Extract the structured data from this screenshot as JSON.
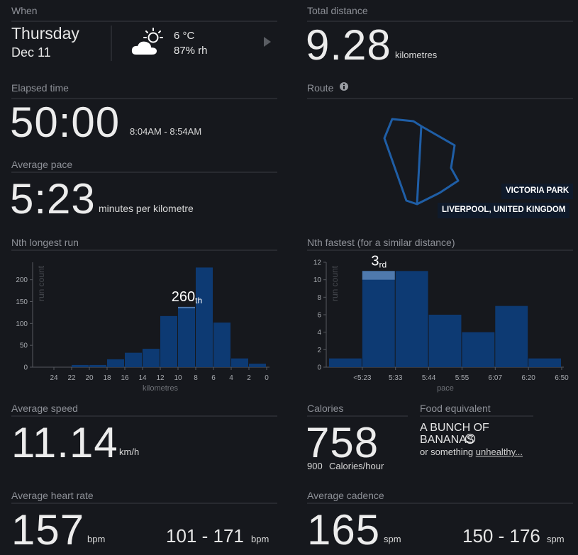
{
  "when": {
    "label": "When",
    "day": "Thursday",
    "date": "Dec 11",
    "temperature": "6 °C",
    "humidity": "87% rh"
  },
  "total_distance": {
    "label": "Total distance",
    "value": "9.28",
    "unit": "kilometres"
  },
  "elapsed_time": {
    "label": "Elapsed time",
    "value": "50:00",
    "range": "8:04AM - 8:54AM"
  },
  "route": {
    "label": "Route",
    "place": "VICTORIA PARK",
    "city": "LIVERPOOL, UNITED KINGDOM"
  },
  "average_pace": {
    "label": "Average pace",
    "value": "5:23",
    "unit": "minutes per kilometre"
  },
  "chart_data": [
    {
      "type": "histogram",
      "title": "Nth longest run",
      "bins": [
        0,
        2,
        4,
        6,
        8,
        10,
        12,
        14,
        16,
        18,
        20,
        22
      ],
      "values": [
        8,
        20,
        102,
        228,
        138,
        117,
        42,
        33,
        18,
        5,
        5
      ],
      "xlim": [
        24,
        0
      ],
      "xticks": [
        24,
        22,
        20,
        18,
        16,
        14,
        12,
        10,
        8,
        6,
        4,
        2,
        0
      ],
      "ylim": [
        0,
        240
      ],
      "yticks": [
        0,
        50,
        100,
        150,
        200
      ],
      "xlabel": "kilometres",
      "ylabel": "run count",
      "color": "#0d3a73",
      "highlight_color": "#4f79ad",
      "highlight": 4,
      "annotation": "260",
      "annotation_suffix": "th"
    },
    {
      "type": "bar",
      "title": "Nth fastest (for a similar distance)",
      "bin_labels": [
        null,
        "<5:23",
        "5:33",
        "5:44",
        "5:55",
        "6:07",
        "6:20",
        "6:50"
      ],
      "values": [
        1,
        11,
        11,
        6,
        4,
        7,
        1
      ],
      "ylim": [
        0,
        12
      ],
      "yticks": [
        0,
        2,
        4,
        6,
        8,
        10,
        12
      ],
      "xlabel": "pace",
      "ylabel": "run count",
      "color": "#0d3a73",
      "highlight_color": "#4f79ad",
      "highlight": 1,
      "annotation": "3",
      "annotation_suffix": "rd"
    }
  ],
  "average_speed": {
    "label": "Average speed",
    "value": "11.14",
    "unit": "km/h"
  },
  "calories": {
    "label": "Calories",
    "value": "758",
    "rate": "900",
    "rate_unit": "Calories/hour"
  },
  "food": {
    "label": "Food equivalent",
    "item": "A BUNCH OF BANANAS",
    "help": "?",
    "alt_prefix": "or something",
    "alt_link": "unhealthy..."
  },
  "average_heart_rate": {
    "label": "Average heart rate",
    "value": "157",
    "unit": "bpm",
    "range": "101 - 171",
    "range_unit": "bpm"
  },
  "average_cadence": {
    "label": "Average cadence",
    "value": "165",
    "unit": "spm",
    "range": "150 - 176",
    "range_unit": "spm"
  }
}
